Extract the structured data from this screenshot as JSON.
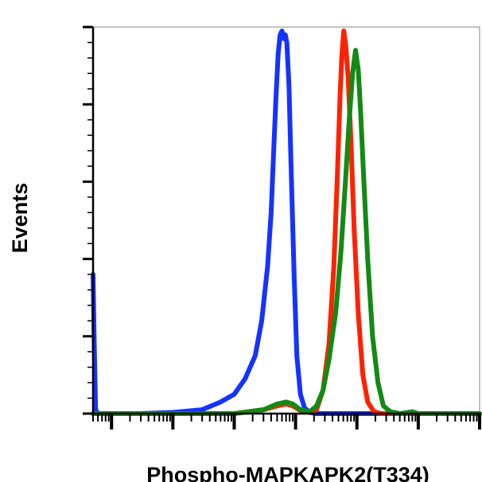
{
  "chart_data": {
    "type": "line",
    "title": "",
    "xlabel": "Phospho-MAPKAPK2(T334)",
    "ylabel": "Events",
    "xscale": "log",
    "xlim": [
      0.5,
      1000000
    ],
    "ylim": [
      0,
      100
    ],
    "grid": false,
    "legend": "none",
    "series": [
      {
        "color": "#1533ff",
        "x": [
          0.5,
          0.52,
          0.55,
          0.6,
          0.7,
          1,
          3,
          10,
          30,
          60,
          100,
          150,
          220,
          280,
          350,
          400,
          440,
          480,
          520,
          560,
          600,
          640,
          680,
          720,
          780,
          850,
          950,
          1050,
          1200,
          1400,
          1700,
          2200,
          3000,
          5000,
          10000,
          100000,
          1000000
        ],
        "y": [
          36,
          20,
          1,
          0,
          0,
          0,
          0,
          0.3,
          1,
          3,
          5,
          9,
          15,
          24,
          38,
          52,
          68,
          82,
          93,
          98,
          99,
          97,
          98,
          96,
          85,
          62,
          35,
          15,
          5,
          1.5,
          0.3,
          0,
          0,
          0,
          0,
          0,
          0
        ]
      },
      {
        "color": "#ff2200",
        "x": [
          0.5,
          100,
          300,
          500,
          700,
          900,
          1200,
          1700,
          2200,
          2800,
          3500,
          4200,
          4800,
          5300,
          5700,
          6100,
          6600,
          7200,
          8000,
          9000,
          10500,
          12500,
          15000,
          19000,
          25000,
          40000,
          100000,
          1000000
        ],
        "y": [
          0,
          0,
          1,
          2,
          2.5,
          2,
          0.8,
          0.3,
          1,
          6,
          18,
          38,
          62,
          82,
          93,
          99,
          95,
          87,
          70,
          48,
          26,
          10,
          3,
          0.5,
          0,
          0,
          0,
          0
        ]
      },
      {
        "color": "#138a13",
        "x": [
          0.5,
          100,
          300,
          500,
          700,
          900,
          1200,
          1700,
          2200,
          2800,
          3500,
          4500,
          5500,
          6500,
          7500,
          8500,
          9500,
          10500,
          11500,
          13000,
          15000,
          18000,
          22000,
          27000,
          35000,
          50000,
          80000,
          100000,
          1000000
        ],
        "y": [
          0,
          0,
          1,
          2.5,
          3,
          2.5,
          1,
          0.5,
          2,
          6,
          14,
          26,
          42,
          60,
          76,
          88,
          94,
          89,
          78,
          60,
          40,
          20,
          8,
          2,
          0.5,
          0,
          0.5,
          0,
          0
        ]
      }
    ]
  }
}
